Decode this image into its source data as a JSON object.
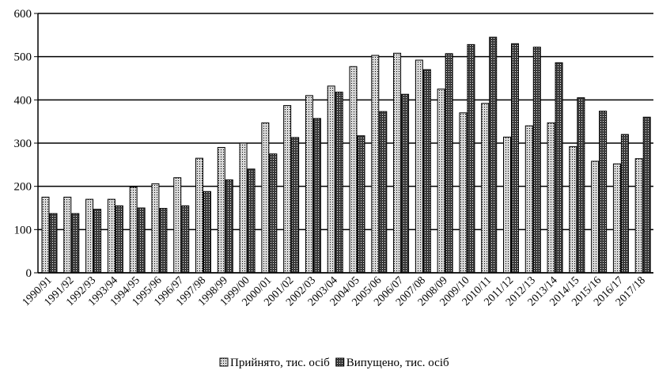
{
  "chart_data": {
    "type": "bar",
    "categories": [
      "1990/91",
      "1991/92",
      "1992/93",
      "1993/94",
      "1994/95",
      "1995/96",
      "1996/97",
      "1997/98",
      "1998/99",
      "1999/00",
      "2000/01",
      "2001/02",
      "2002/03",
      "2003/04",
      "2004/05",
      "2005/06",
      "2006/07",
      "2007/08",
      "2008/09",
      "2009/10",
      "2010/11",
      "2011/12",
      "2012/13",
      "2013/14",
      "2014/15",
      "2015/16",
      "2016/17",
      "2017/18"
    ],
    "series": [
      {
        "name": "Прийнято, тис. осіб",
        "color": "#d8d8d8",
        "values": [
          175,
          175,
          170,
          170,
          198,
          206,
          220,
          265,
          290,
          300,
          347,
          387,
          410,
          432,
          477,
          503,
          508,
          492,
          425,
          370,
          392,
          314,
          340,
          347,
          292,
          258,
          252,
          264
        ]
      },
      {
        "name": "Випущено, тис. осіб",
        "color": "#3a3a3a",
        "values": [
          137,
          137,
          147,
          155,
          150,
          149,
          155,
          188,
          215,
          240,
          275,
          313,
          357,
          418,
          317,
          373,
          413,
          470,
          507,
          528,
          545,
          530,
          522,
          486,
          405,
          374,
          320,
          360
        ]
      }
    ],
    "ylim": [
      0,
      600
    ],
    "yticks": [
      0,
      100,
      200,
      300,
      400,
      500,
      600
    ],
    "grid": true,
    "legend": "bottom"
  }
}
